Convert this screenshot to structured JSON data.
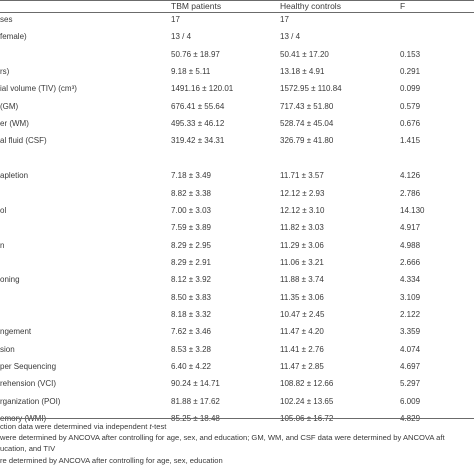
{
  "table": {
    "headers": [
      "",
      "TBM patients",
      "Healthy controls",
      "F"
    ],
    "rows": [
      {
        "label": "ses",
        "tbm": "17",
        "hc": "17",
        "f": ""
      },
      {
        "label": "female)",
        "tbm": "13 / 4",
        "hc": "13 / 4",
        "f": ""
      },
      {
        "label": "",
        "tbm": "50.76 ± 18.97",
        "hc": "50.41 ± 17.20",
        "f": "0.153"
      },
      {
        "label": "rs)",
        "tbm": "9.18 ± 5.11",
        "hc": "13.18 ± 4.91",
        "f": "0.291"
      },
      {
        "label": "ial volume (TIV) (cm³)",
        "tbm": "1491.16 ± 120.01",
        "hc": "1572.95 ± 110.84",
        "f": "0.099"
      },
      {
        "label": "(GM)",
        "tbm": "676.41 ± 55.64",
        "hc": "717.43 ± 51.80",
        "f": "0.579"
      },
      {
        "label": "er (WM)",
        "tbm": "495.33 ± 46.12",
        "hc": "528.74 ± 45.04",
        "f": "0.676"
      },
      {
        "label": "al fluid (CSF)",
        "tbm": "319.42 ± 34.31",
        "hc": "326.79 ± 41.80",
        "f": "1.415"
      },
      {
        "label": "",
        "tbm": "",
        "hc": "",
        "f": ""
      },
      {
        "label": "apletion",
        "tbm": "7.18 ± 3.49",
        "hc": "11.71 ± 3.57",
        "f": "4.126"
      },
      {
        "label": "",
        "tbm": "8.82 ± 3.38",
        "hc": "12.12 ± 2.93",
        "f": "2.786"
      },
      {
        "label": "ol",
        "tbm": "7.00 ± 3.03",
        "hc": "12.12 ± 3.10",
        "f": "14.130"
      },
      {
        "label": "",
        "tbm": "7.59 ± 3.89",
        "hc": "11.82 ± 3.03",
        "f": "4.917"
      },
      {
        "label": "n",
        "tbm": "8.29 ± 2.95",
        "hc": "11.29 ± 3.06",
        "f": "4.988"
      },
      {
        "label": "",
        "tbm": "8.29 ± 2.91",
        "hc": "11.06 ± 3.21",
        "f": "2.666"
      },
      {
        "label": "oning",
        "tbm": "8.12 ± 3.92",
        "hc": "11.88 ± 3.74",
        "f": "4.334"
      },
      {
        "label": "",
        "tbm": "8.50 ± 3.83",
        "hc": "11.35 ± 3.06",
        "f": "3.109"
      },
      {
        "label": "",
        "tbm": "8.18 ± 3.32",
        "hc": "10.47 ± 2.45",
        "f": "2.122"
      },
      {
        "label": "ngement",
        "tbm": "7.62 ± 3.46",
        "hc": "11.47 ± 4.20",
        "f": "3.359"
      },
      {
        "label": "sion",
        "tbm": "8.53 ± 3.28",
        "hc": "11.41 ± 2.76",
        "f": "4.074"
      },
      {
        "label": "per Sequencing",
        "tbm": "6.40 ± 4.22",
        "hc": "11.47 ± 2.85",
        "f": "4.697"
      },
      {
        "label": "rehension (VCI)",
        "tbm": "90.24 ± 14.71",
        "hc": "108.82 ± 12.66",
        "f": "5.297"
      },
      {
        "label": "rganization (POI)",
        "tbm": "81.88 ± 17.62",
        "hc": "102.24 ± 13.65",
        "f": "6.009"
      },
      {
        "label": "emory (WMI)",
        "tbm": "85.25 ± 18.48",
        "hc": "105.06 ± 16.72",
        "f": "4.829"
      }
    ]
  },
  "footnotes": [
    {
      "text": "ction data were determined via independent ",
      "italic": "t",
      "tail": "-test"
    },
    {
      "text": "were determined by ANCOVA after controlling for age, sex, and education; GM, WM, and CSF data were determined by ANCOVA aft",
      "italic": "",
      "tail": ""
    },
    {
      "text": "ucation, and TIV",
      "italic": "",
      "tail": ""
    },
    {
      "text": "re determined by ANCOVA after controlling for age, sex, education",
      "italic": "",
      "tail": ""
    }
  ]
}
